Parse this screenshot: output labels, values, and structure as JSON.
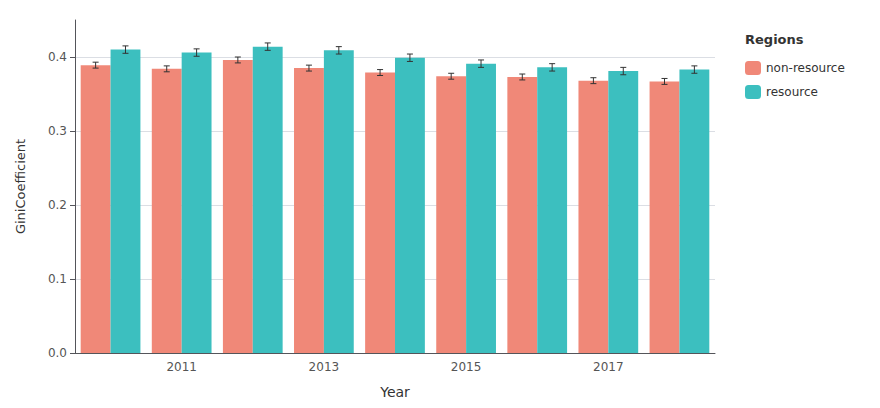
{
  "chart_data": {
    "type": "bar",
    "categories": [
      null,
      "2011",
      null,
      "2013",
      null,
      "2015",
      null,
      "2017",
      null
    ],
    "series": [
      {
        "name": "non-resource",
        "color": "#F08878",
        "values": [
          0.389,
          0.384,
          0.396,
          0.385,
          0.379,
          0.374,
          0.373,
          0.368,
          0.367
        ],
        "errors": [
          0.004,
          0.004,
          0.004,
          0.004,
          0.004,
          0.004,
          0.004,
          0.004,
          0.004
        ]
      },
      {
        "name": "resource",
        "color": "#3CBFBF",
        "values": [
          0.41,
          0.406,
          0.414,
          0.409,
          0.399,
          0.391,
          0.386,
          0.381,
          0.383
        ],
        "errors": [
          0.005,
          0.005,
          0.005,
          0.005,
          0.005,
          0.005,
          0.005,
          0.005,
          0.005
        ]
      }
    ],
    "xlabel": "Year",
    "ylabel": "GiniCoefficient",
    "legend_title": "Regions",
    "ylim": [
      0.0,
      0.45
    ],
    "yticks": [
      {
        "value": 0.0,
        "label": "0.0"
      },
      0.1,
      0.2,
      0.3,
      0.4
    ],
    "grid": true,
    "legend": "right"
  }
}
